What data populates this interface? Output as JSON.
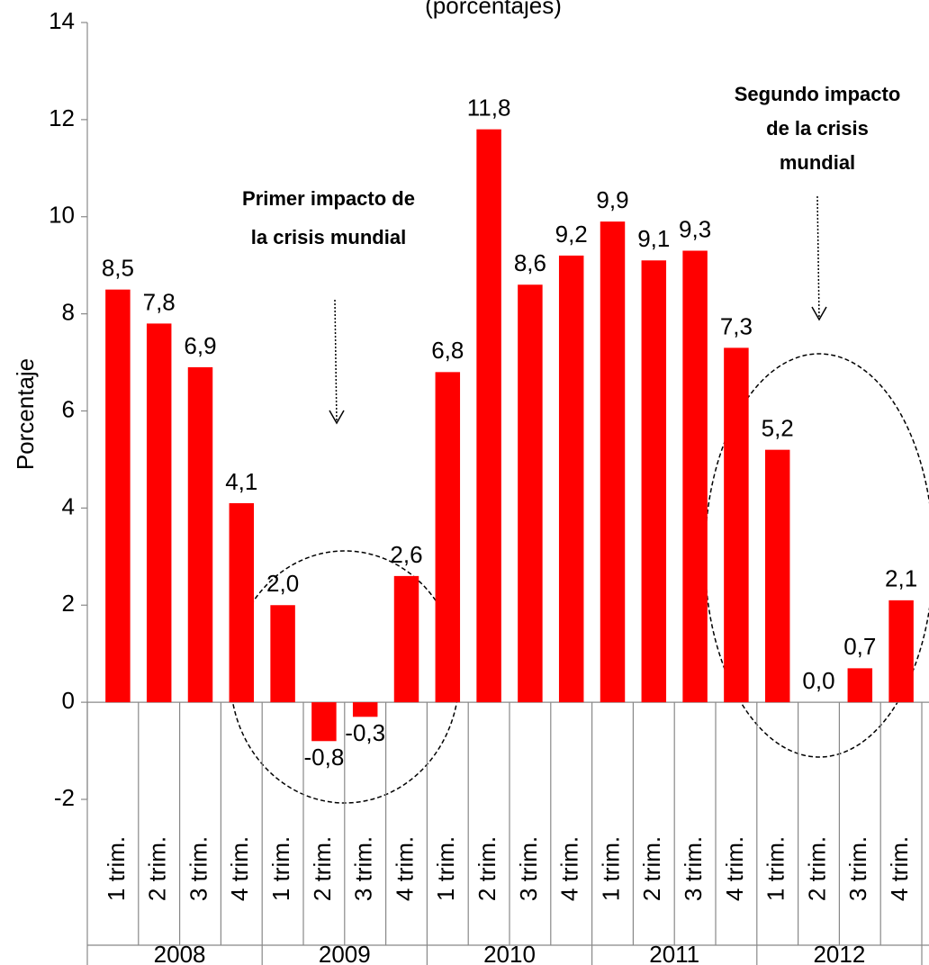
{
  "chart_data": {
    "type": "bar",
    "title": "(porcentajes)",
    "y_label": "Porcentaje",
    "categories": [
      "1 trim.",
      "2 trim.",
      "3 trim.",
      "4 trim.",
      "1 trim.",
      "2 trim.",
      "3 trim.",
      "4 trim.",
      "1 trim.",
      "2 trim.",
      "3 trim.",
      "4 trim.",
      "1 trim.",
      "2 trim.",
      "3 trim.",
      "4 trim.",
      "1 trim.",
      "2 trim.",
      "3 trim.",
      "4 trim."
    ],
    "category_groups": [
      "2008",
      "2009",
      "2010",
      "2011",
      "2012"
    ],
    "values": [
      8.5,
      7.8,
      6.9,
      4.1,
      2.0,
      -0.8,
      -0.3,
      2.6,
      6.8,
      11.8,
      8.6,
      9.2,
      9.9,
      9.1,
      9.3,
      7.3,
      5.2,
      0.0,
      0.7,
      2.1
    ],
    "value_labels": [
      "8,5",
      "7,8",
      "6,9",
      "4,1",
      "2,0",
      "-0,8",
      "-0,3",
      "2,6",
      "6,8",
      "11,8",
      "8,6",
      "9,2",
      "9,9",
      "9,1",
      "9,3",
      "7,3",
      "5,2",
      "0,0",
      "0,7",
      "2,1"
    ],
    "color": "#ff0000",
    "ylim": [
      -2,
      14
    ],
    "yticks": [
      -2,
      0,
      2,
      4,
      6,
      8,
      10,
      12,
      14
    ],
    "grid": false,
    "annotations": [
      {
        "lines": [
          "Primer impacto de",
          "la crisis mundial"
        ]
      },
      {
        "lines": [
          "Segundo impacto",
          "de la crisis",
          "mundial"
        ]
      }
    ]
  }
}
